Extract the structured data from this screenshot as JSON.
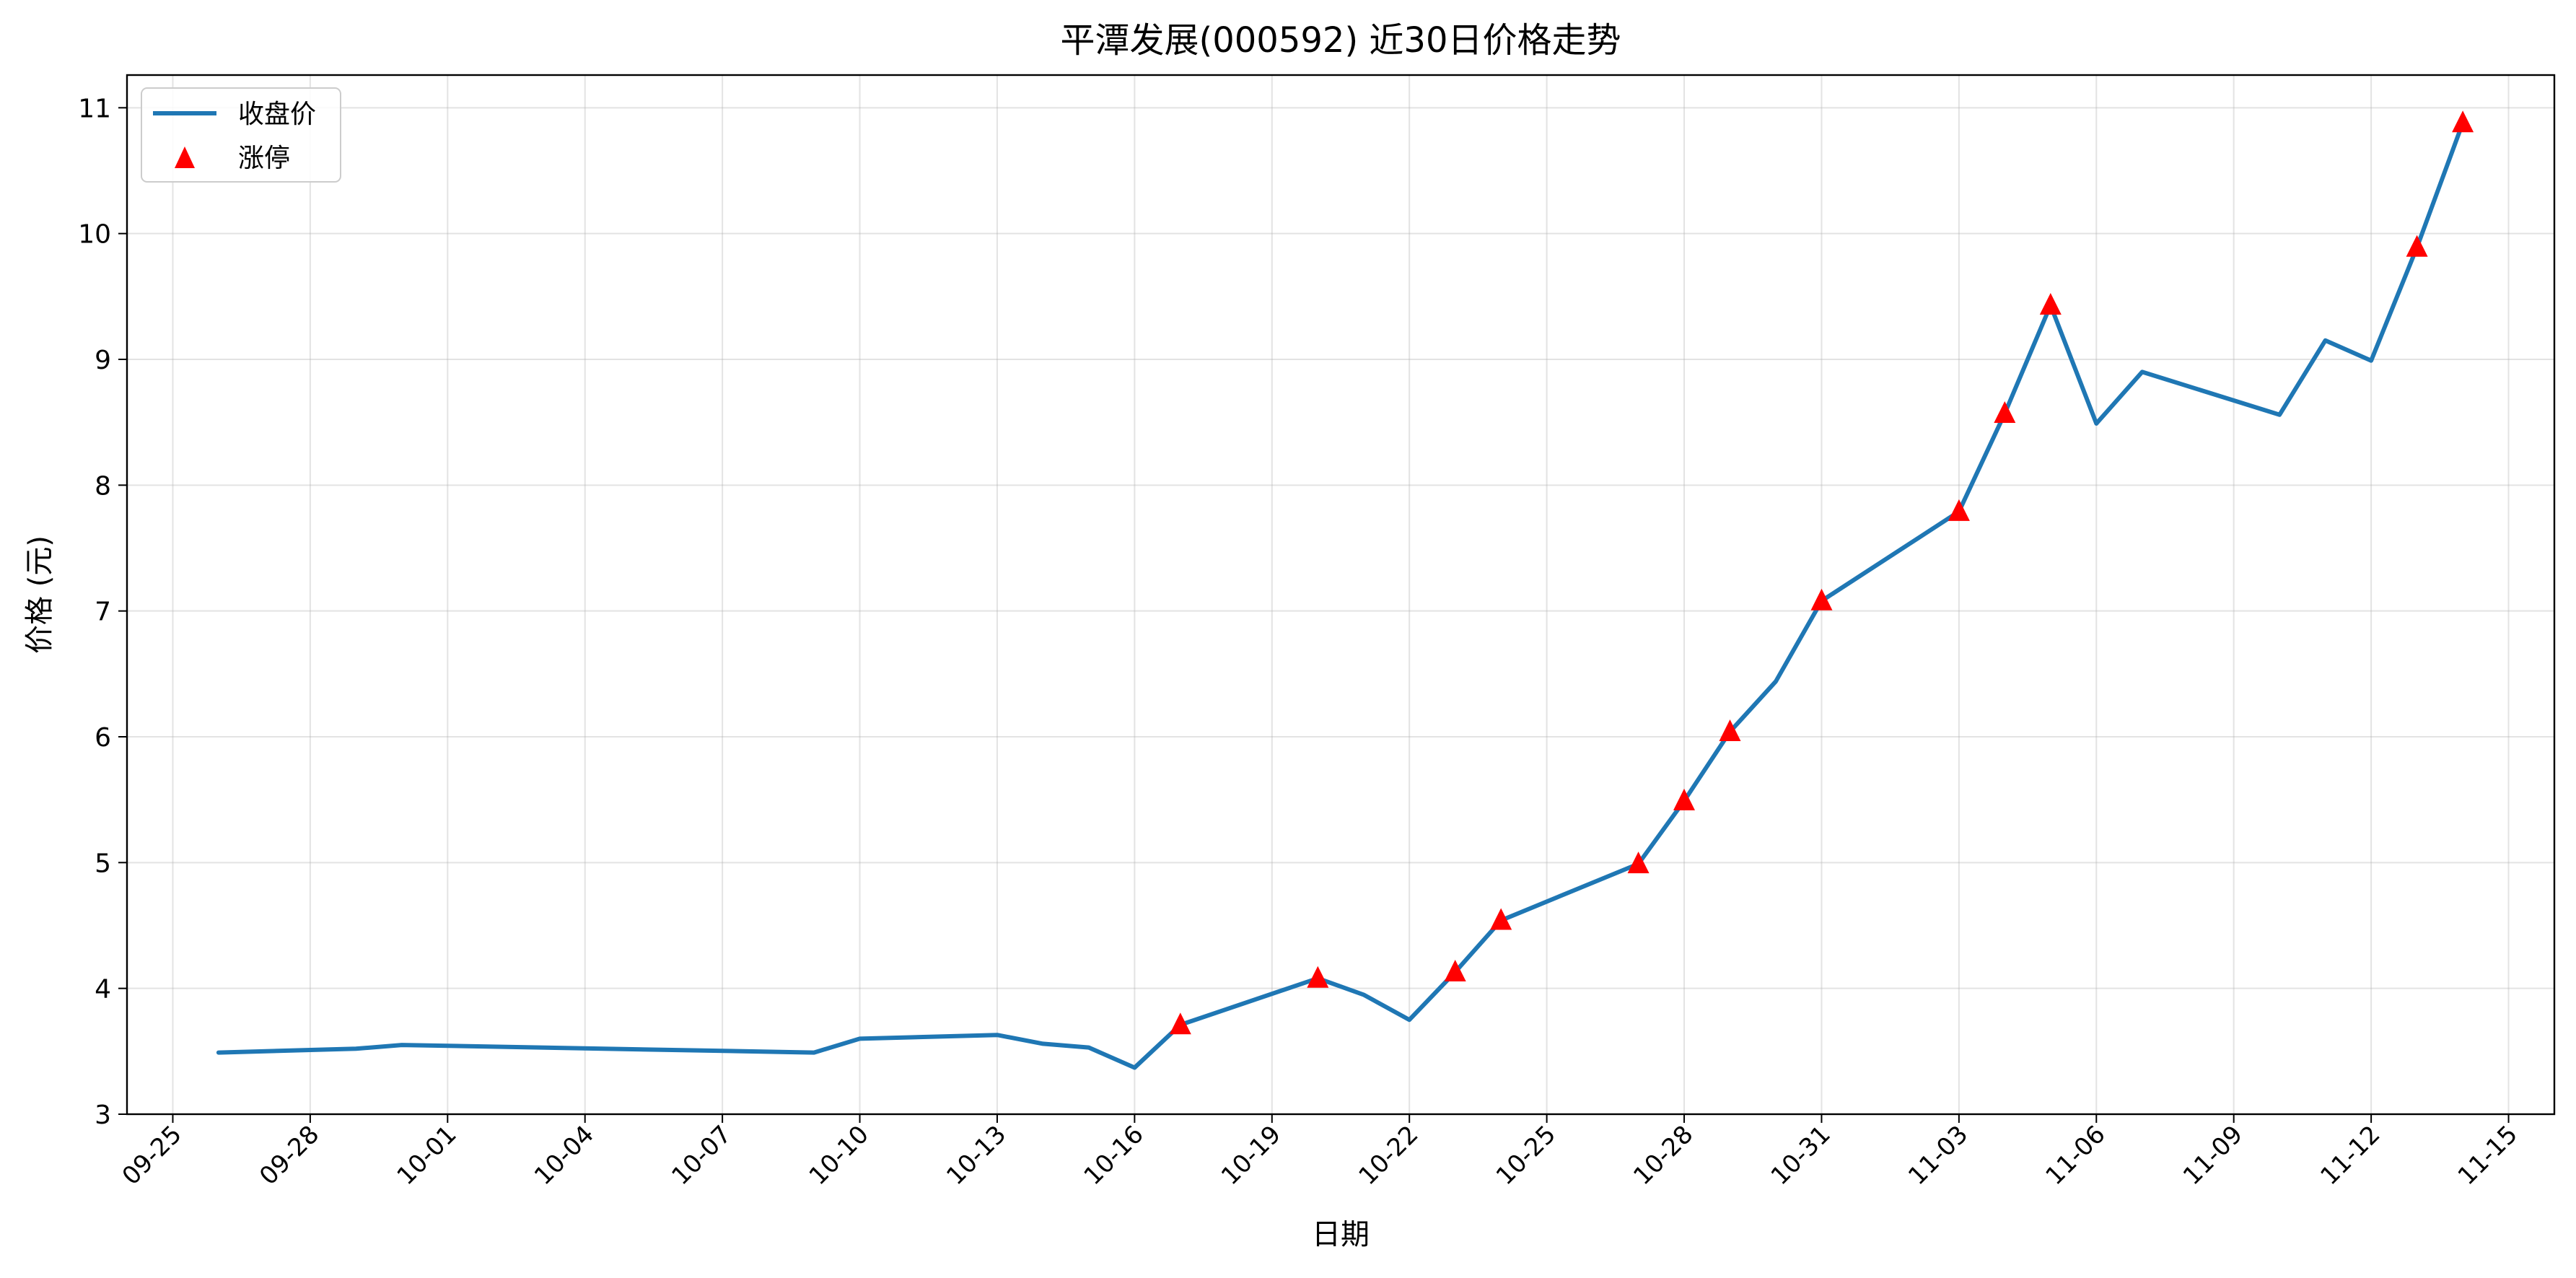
{
  "chart_data": {
    "type": "line",
    "title": "平潭发展(000592) 近30日价格走势",
    "xlabel": "日期",
    "ylabel": "价格 (元)",
    "grid": true,
    "legend": {
      "placement": "top-left",
      "entries": [
        "收盘价",
        "涨停"
      ]
    },
    "ylim": [
      3,
      11.26
    ],
    "yticks": [
      3,
      4,
      5,
      6,
      7,
      8,
      9,
      10,
      11
    ],
    "xlim": [
      "2025-09-24",
      "2025-11-16"
    ],
    "xticks": [
      "09-25",
      "09-28",
      "10-01",
      "10-04",
      "10-07",
      "10-10",
      "10-13",
      "10-16",
      "10-19",
      "10-22",
      "10-25",
      "10-28",
      "10-31",
      "11-03",
      "11-06",
      "11-09",
      "11-12",
      "11-15"
    ],
    "series": [
      {
        "name": "收盘价",
        "kind": "line",
        "color": "#1f77b4",
        "points": [
          [
            "2025-09-26",
            3.49
          ],
          [
            "2025-09-29",
            3.52
          ],
          [
            "2025-09-30",
            3.55
          ],
          [
            "2025-10-09",
            3.49
          ],
          [
            "2025-10-10",
            3.6
          ],
          [
            "2025-10-13",
            3.63
          ],
          [
            "2025-10-14",
            3.56
          ],
          [
            "2025-10-15",
            3.53
          ],
          [
            "2025-10-16",
            3.37
          ],
          [
            "2025-10-17",
            3.71
          ],
          [
            "2025-10-20",
            4.08
          ],
          [
            "2025-10-21",
            3.95
          ],
          [
            "2025-10-22",
            3.75
          ],
          [
            "2025-10-23",
            4.13
          ],
          [
            "2025-10-24",
            4.54
          ],
          [
            "2025-10-27",
            4.99
          ],
          [
            "2025-10-28",
            5.49
          ],
          [
            "2025-10-29",
            6.04
          ],
          [
            "2025-10-30",
            6.44
          ],
          [
            "2025-10-31",
            7.08
          ],
          [
            "2025-11-03",
            7.79
          ],
          [
            "2025-11-04",
            8.57
          ],
          [
            "2025-11-05",
            9.43
          ],
          [
            "2025-11-06",
            8.49
          ],
          [
            "2025-11-07",
            8.9
          ],
          [
            "2025-11-10",
            8.56
          ],
          [
            "2025-11-11",
            9.15
          ],
          [
            "2025-11-12",
            8.99
          ],
          [
            "2025-11-13",
            9.89
          ],
          [
            "2025-11-14",
            10.88
          ]
        ]
      },
      {
        "name": "涨停",
        "kind": "marker",
        "marker": "triangle",
        "color": "#ff0000",
        "points": [
          [
            "2025-10-17",
            3.71
          ],
          [
            "2025-10-20",
            4.08
          ],
          [
            "2025-10-23",
            4.13
          ],
          [
            "2025-10-24",
            4.54
          ],
          [
            "2025-10-27",
            4.99
          ],
          [
            "2025-10-28",
            5.49
          ],
          [
            "2025-10-29",
            6.04
          ],
          [
            "2025-10-31",
            7.08
          ],
          [
            "2025-11-03",
            7.79
          ],
          [
            "2025-11-04",
            8.57
          ],
          [
            "2025-11-05",
            9.43
          ],
          [
            "2025-11-13",
            9.89
          ],
          [
            "2025-11-14",
            10.88
          ]
        ]
      }
    ]
  }
}
